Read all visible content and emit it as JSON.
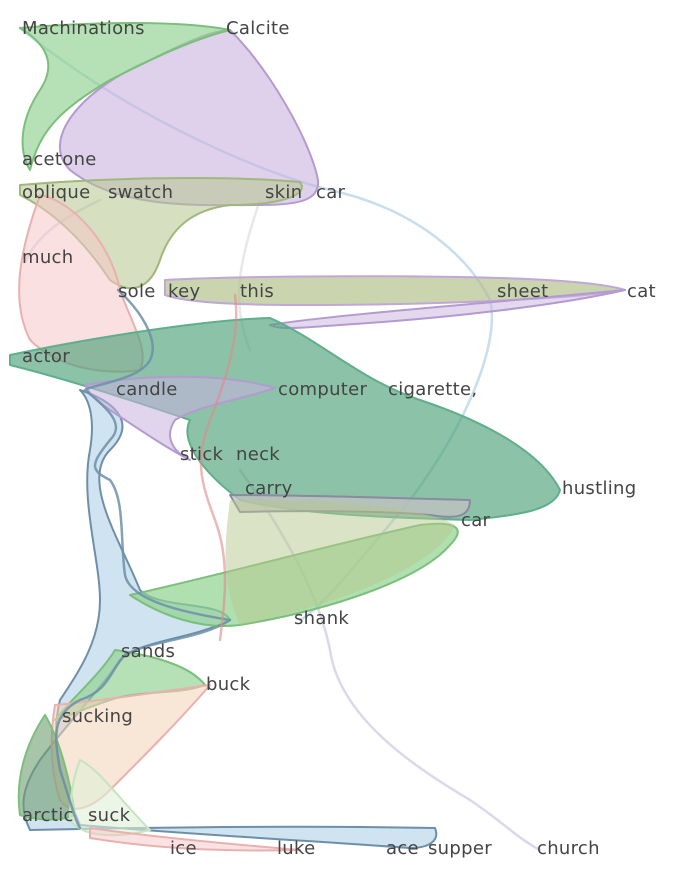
{
  "colors": {
    "green": "#8fd18f",
    "purple": "#c9b2de",
    "pink": "#f6c6c6",
    "blue": "#a9cce3",
    "teal": "#5fae8c",
    "text": "#444444"
  },
  "words": [
    "Machinations",
    "Calcite",
    "acetone",
    "oblique",
    "swatch",
    "skin",
    "car",
    "much",
    "sole",
    "key",
    "this",
    "sheet",
    "cat",
    "actor",
    "candle",
    "computer",
    "cigarette,",
    "stick",
    "neck",
    "carry",
    "hustling",
    "car",
    "shank",
    "sands",
    "buck",
    "sucking",
    "arctic",
    "suck",
    "ice",
    "luke",
    "ace",
    "supper",
    "church"
  ]
}
